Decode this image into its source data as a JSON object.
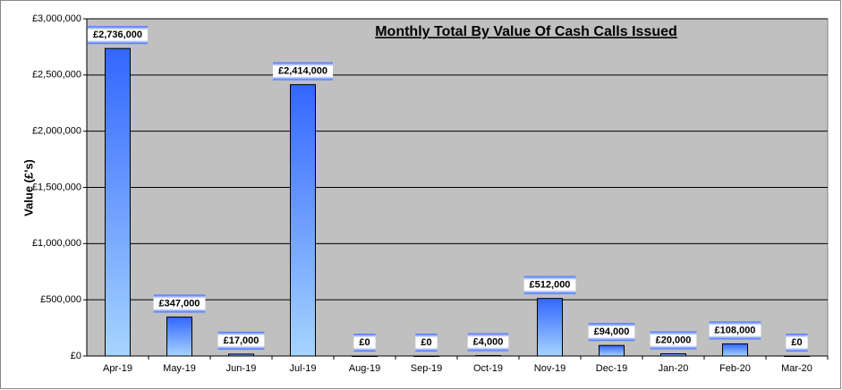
{
  "chart_data": {
    "type": "bar",
    "title": "Monthly Total By Value Of Cash Calls Issued",
    "y_label": "Value (£'s)",
    "categories": [
      "Apr-19",
      "May-19",
      "Jun-19",
      "Jul-19",
      "Aug-19",
      "Sep-19",
      "Oct-19",
      "Nov-19",
      "Dec-19",
      "Jan-20",
      "Feb-20",
      "Mar-20"
    ],
    "values": [
      2736000,
      347000,
      17000,
      2414000,
      0,
      0,
      4000,
      512000,
      94000,
      20000,
      108000,
      0
    ],
    "value_labels": [
      "£2,736,000",
      "£347,000",
      "£17,000",
      "£2,414,000",
      "£0",
      "£0",
      "£4,000",
      "£512,000",
      "£94,000",
      "£20,000",
      "£108,000",
      "£0"
    ],
    "color": "#3366ff",
    "ylim": [
      0,
      3000000
    ],
    "yticks": [
      {
        "value": 0,
        "label": "£0"
      },
      {
        "value": 500000,
        "label": "£500,000"
      },
      {
        "value": 1000000,
        "label": "£1,000,000"
      },
      {
        "value": 1500000,
        "label": "£1,500,000"
      },
      {
        "value": 2000000,
        "label": "£2,000,000"
      },
      {
        "value": 2500000,
        "label": "£2,500,000"
      },
      {
        "value": 3000000,
        "label": "£3,000,000"
      }
    ],
    "grid": true
  }
}
